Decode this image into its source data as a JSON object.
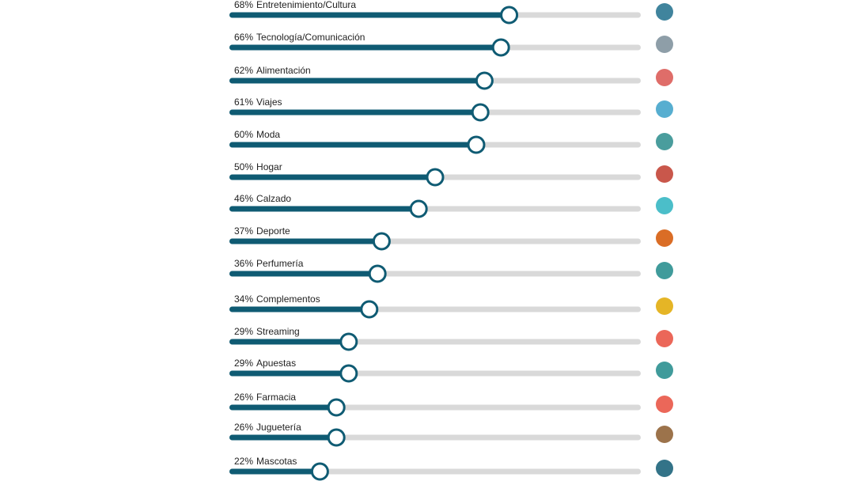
{
  "chart_data": {
    "type": "bar",
    "orientation": "horizontal",
    "categories": [
      "Entretenimiento/Cultura",
      "Tecnología/Comunicación",
      "Alimentación",
      "Viajes",
      "Moda",
      "Hogar",
      "Calzado",
      "Deporte",
      "Perfumería",
      "Complementos",
      "Streaming",
      "Apuestas",
      "Farmacia",
      "Juguetería",
      "Mascotas"
    ],
    "values": [
      68,
      66,
      62,
      61,
      60,
      50,
      46,
      37,
      36,
      34,
      29,
      29,
      26,
      26,
      22
    ],
    "value_labels": [
      "68%",
      "66%",
      "62%",
      "61%",
      "60%",
      "50%",
      "46%",
      "37%",
      "36%",
      "34%",
      "29%",
      "29%",
      "26%",
      "26%",
      "22%"
    ],
    "xlim": [
      0,
      100
    ],
    "color": "#0f5b73",
    "track_color": "#d9d9d9"
  }
}
